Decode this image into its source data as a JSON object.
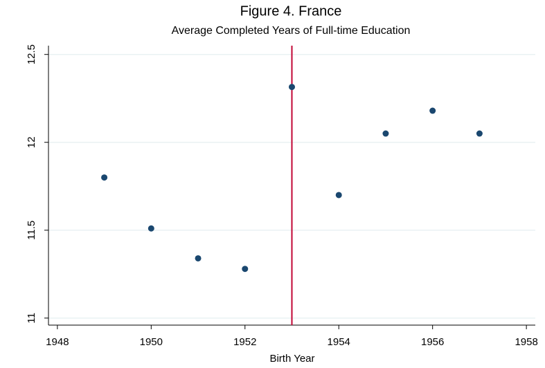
{
  "chart_data": {
    "type": "scatter",
    "title": "Figure 4. France",
    "subtitle": "Average Completed Years of Full-time Education",
    "xlabel": "Birth Year",
    "x": [
      1949,
      1950,
      1951,
      1952,
      1953,
      1954,
      1955,
      1956,
      1957
    ],
    "values": [
      11.8,
      11.51,
      11.34,
      11.28,
      12.315,
      11.7,
      12.05,
      12.18,
      12.05
    ],
    "color": "#1a476f",
    "xlim": [
      1947.81,
      1958.19
    ],
    "xticks": [
      1948,
      1950,
      1952,
      1954,
      1956,
      1958
    ],
    "ylim": [
      10.96,
      12.55
    ],
    "yticks": [
      11,
      11.5,
      12,
      12.5
    ],
    "grid": true,
    "vline": {
      "x": 1953,
      "color": "#c10534"
    }
  }
}
